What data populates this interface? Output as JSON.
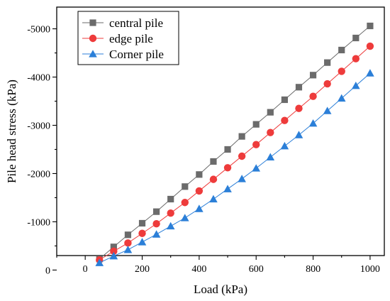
{
  "chart_data": {
    "type": "line",
    "xlabel": "Load (kPa)",
    "ylabel": "Pile head stress (kPa)",
    "xlim": [
      -100,
      1050
    ],
    "ylim": [
      -300,
      -5450
    ],
    "x_ticks": [
      0,
      200,
      400,
      600,
      800,
      1000
    ],
    "x_tick_labels": [
      "0",
      "200",
      "400",
      "600",
      "800",
      "1000"
    ],
    "y_ticks": [
      0,
      -1000,
      -2000,
      -3000,
      -4000,
      -5000
    ],
    "y_tick_labels": [
      "0",
      "-1000",
      "-2000",
      "-3000",
      "-4000",
      "-5000"
    ],
    "legend_position": "top-left",
    "x": [
      50,
      100,
      150,
      200,
      250,
      300,
      350,
      400,
      450,
      500,
      550,
      600,
      650,
      700,
      750,
      800,
      850,
      900,
      950,
      1000
    ],
    "series": [
      {
        "name": "central pile",
        "marker": "square",
        "color": "#6b6b6b",
        "values": [
          -230,
          -480,
          -730,
          -970,
          -1210,
          -1470,
          -1730,
          -1980,
          -2250,
          -2500,
          -2770,
          -3020,
          -3270,
          -3530,
          -3790,
          -4040,
          -4300,
          -4560,
          -4810,
          -5060
        ]
      },
      {
        "name": "edge pile",
        "marker": "circle",
        "color": "#ee3b3b",
        "values": [
          -210,
          -390,
          -560,
          -760,
          -960,
          -1180,
          -1400,
          -1640,
          -1880,
          -2120,
          -2360,
          -2600,
          -2850,
          -3100,
          -3350,
          -3600,
          -3860,
          -4120,
          -4380,
          -4640
        ]
      },
      {
        "name": "Corner pile",
        "marker": "triangle",
        "color": "#2b7fd8",
        "values": [
          -150,
          -290,
          -420,
          -580,
          -740,
          -910,
          -1080,
          -1270,
          -1470,
          -1680,
          -1890,
          -2110,
          -2340,
          -2570,
          -2800,
          -3040,
          -3300,
          -3560,
          -3820,
          -4080
        ]
      }
    ]
  }
}
